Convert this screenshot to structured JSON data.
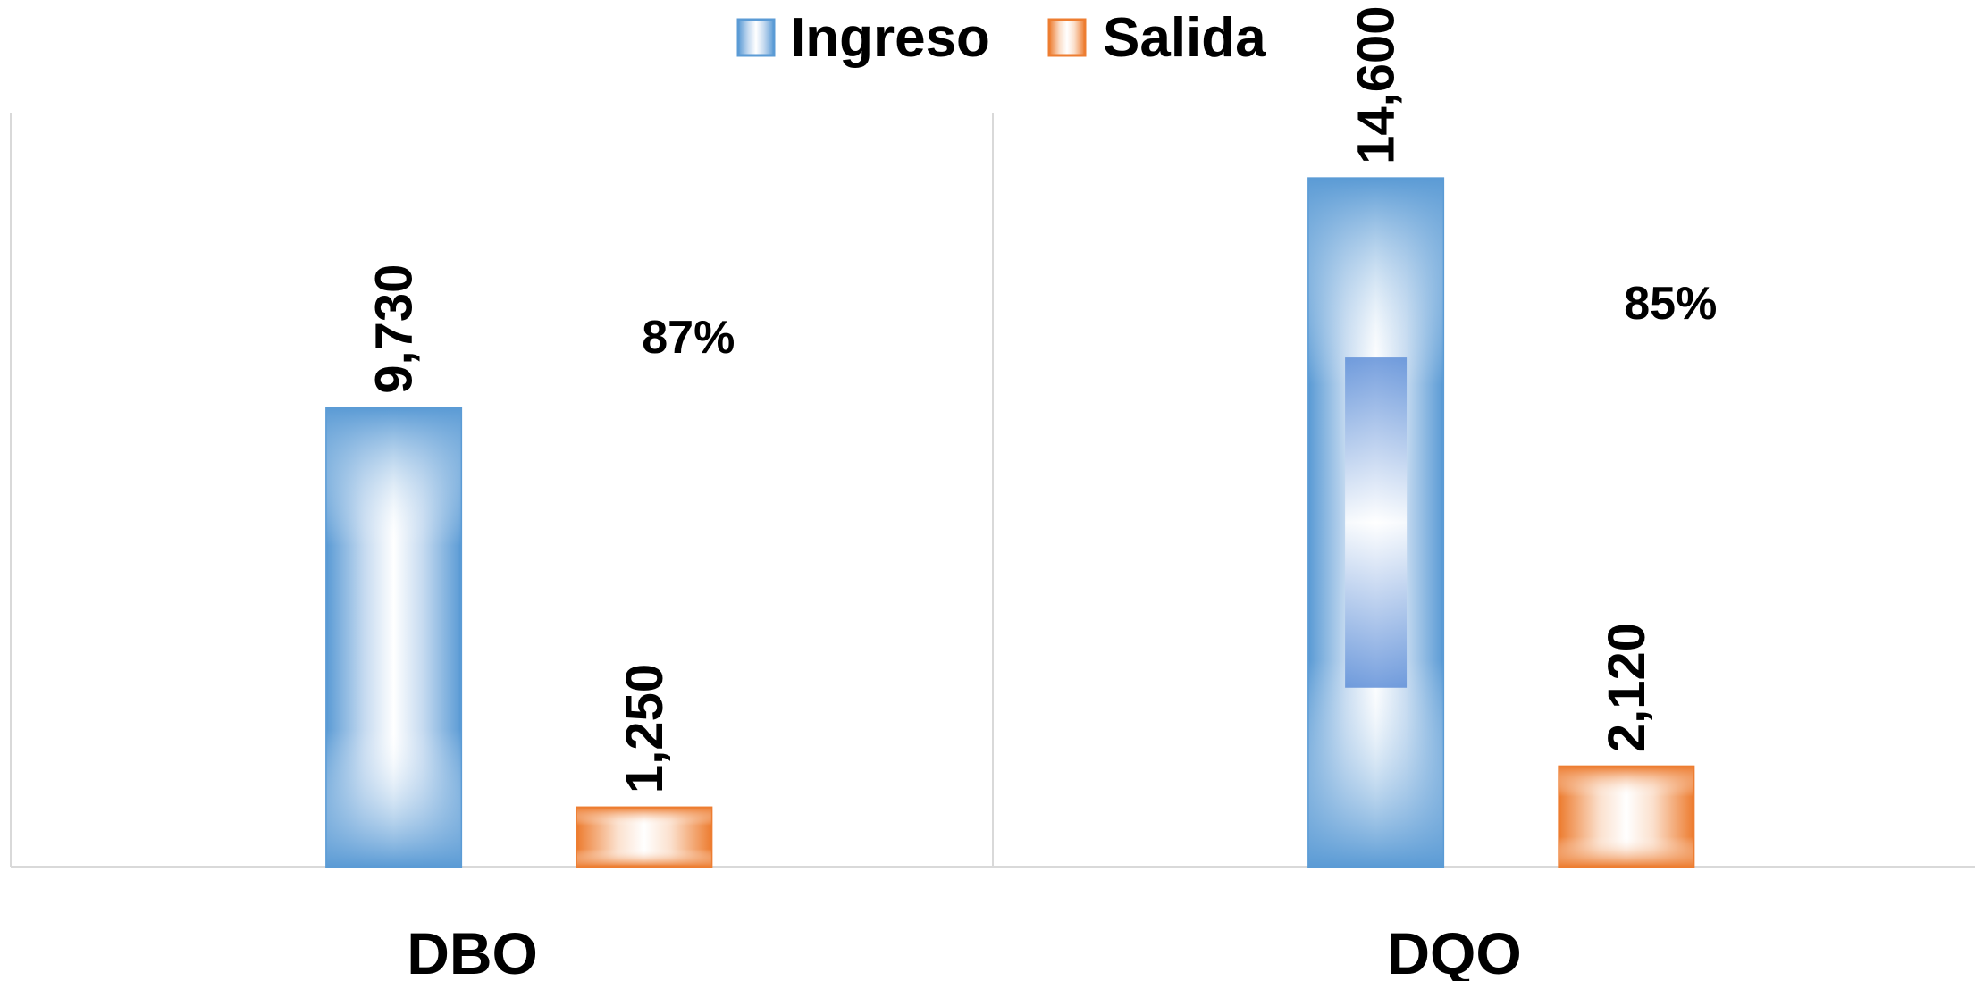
{
  "chart_data": {
    "type": "bar",
    "categories": [
      "DBO",
      "DQO"
    ],
    "series": [
      {
        "name": "Ingreso",
        "values": [
          9730,
          14600
        ],
        "color": "#5b9bd5"
      },
      {
        "name": "Salida",
        "values": [
          1250,
          2120
        ],
        "color": "#ed7d31"
      }
    ],
    "value_labels": {
      "Ingreso": [
        "9,730",
        "14,600"
      ],
      "Salida": [
        "1,250",
        "2,120"
      ]
    },
    "annotations": [
      "87%",
      "85%"
    ],
    "legend_position": "top-center",
    "grid": false,
    "ylim": [
      0,
      16000
    ]
  }
}
